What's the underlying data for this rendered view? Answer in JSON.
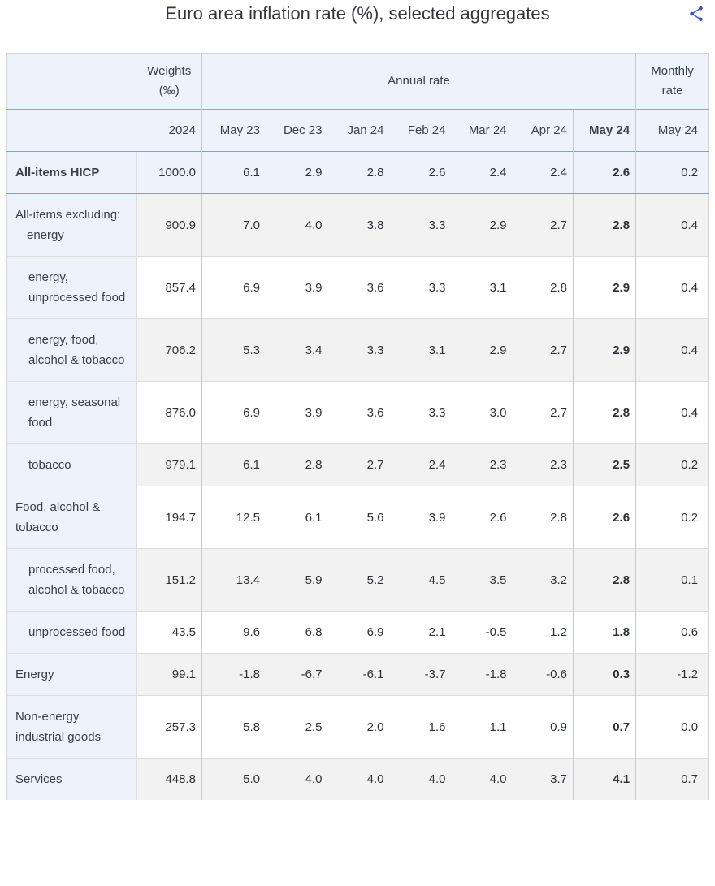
{
  "chart_data": {
    "type": "table",
    "title": "Euro area inflation rate (%), selected aggregates",
    "header": {
      "weights_label": "Weights (‰)",
      "annual_group_label": "Annual rate",
      "monthly_group_label": "Monthly rate",
      "weights_year": "2024",
      "annual_periods": [
        "May 23",
        "Dec 23",
        "Jan 24",
        "Feb 24",
        "Mar 24",
        "Apr 24",
        "May 24"
      ],
      "monthly_period": "May 24"
    },
    "rows": [
      {
        "label": "All-items HICP",
        "indent": 0,
        "bold": true,
        "highlight": true,
        "weight": "1000.0",
        "annual": [
          "6.1",
          "2.9",
          "2.8",
          "2.6",
          "2.4",
          "2.4",
          "2.6"
        ],
        "monthly": "0.2"
      },
      {
        "label": "All-items excluding:",
        "sub_label": "energy",
        "indent": 0,
        "weight": "900.9",
        "annual": [
          "7.0",
          "4.0",
          "3.8",
          "3.3",
          "2.9",
          "2.7",
          "2.8"
        ],
        "monthly": "0.4"
      },
      {
        "label": "energy, unprocessed food",
        "indent": 1,
        "weight": "857.4",
        "annual": [
          "6.9",
          "3.9",
          "3.6",
          "3.3",
          "3.1",
          "2.8",
          "2.9"
        ],
        "monthly": "0.4"
      },
      {
        "label": "energy, food, alcohol & tobacco",
        "indent": 1,
        "weight": "706.2",
        "annual": [
          "5.3",
          "3.4",
          "3.3",
          "3.1",
          "2.9",
          "2.7",
          "2.9"
        ],
        "monthly": "0.4"
      },
      {
        "label": "energy, seasonal food",
        "indent": 1,
        "weight": "876.0",
        "annual": [
          "6.9",
          "3.9",
          "3.6",
          "3.3",
          "3.0",
          "2.7",
          "2.8"
        ],
        "monthly": "0.4"
      },
      {
        "label": "tobacco",
        "indent": 1,
        "weight": "979.1",
        "annual": [
          "6.1",
          "2.8",
          "2.7",
          "2.4",
          "2.3",
          "2.3",
          "2.5"
        ],
        "monthly": "0.2"
      },
      {
        "label": "Food, alcohol & tobacco",
        "indent": 0,
        "weight": "194.7",
        "annual": [
          "12.5",
          "6.1",
          "5.6",
          "3.9",
          "2.6",
          "2.8",
          "2.6"
        ],
        "monthly": "0.2"
      },
      {
        "label": "processed food, alcohol & tobacco",
        "indent": 1,
        "weight": "151.2",
        "annual": [
          "13.4",
          "5.9",
          "5.2",
          "4.5",
          "3.5",
          "3.2",
          "2.8"
        ],
        "monthly": "0.1"
      },
      {
        "label": "unprocessed food",
        "indent": 1,
        "weight": "43.5",
        "annual": [
          "9.6",
          "6.8",
          "6.9",
          "2.1",
          "-0.5",
          "1.2",
          "1.8"
        ],
        "monthly": "0.6"
      },
      {
        "label": "Energy",
        "indent": 0,
        "weight": "99.1",
        "annual": [
          "-1.8",
          "-6.7",
          "-6.1",
          "-3.7",
          "-1.8",
          "-0.6",
          "0.3"
        ],
        "monthly": "-1.2"
      },
      {
        "label": "Non-energy industrial goods",
        "indent": 0,
        "weight": "257.3",
        "annual": [
          "5.8",
          "2.5",
          "2.0",
          "1.6",
          "1.1",
          "0.9",
          "0.7"
        ],
        "monthly": "0.0"
      },
      {
        "label": "Services",
        "indent": 0,
        "weight": "448.8",
        "annual": [
          "5.0",
          "4.0",
          "4.0",
          "4.0",
          "4.0",
          "3.7",
          "4.1"
        ],
        "monthly": "0.7"
      }
    ],
    "layout": {
      "bold_last_annual_column": true,
      "alternating_row_shading": true,
      "label_column_tinted": true
    }
  },
  "icons": {
    "share": "share-icon"
  },
  "colors": {
    "header_bg": "#edf2fb",
    "label_column_bg": "#edf2fb",
    "alt_row_bg": "#f2f2f2",
    "highlight_border_blue": "#7ba0dd",
    "grid_line": "#c6cad1",
    "row_line": "#dcdcdc",
    "title_text": "#32373c",
    "share_icon_blue": "#3f6ae0"
  }
}
